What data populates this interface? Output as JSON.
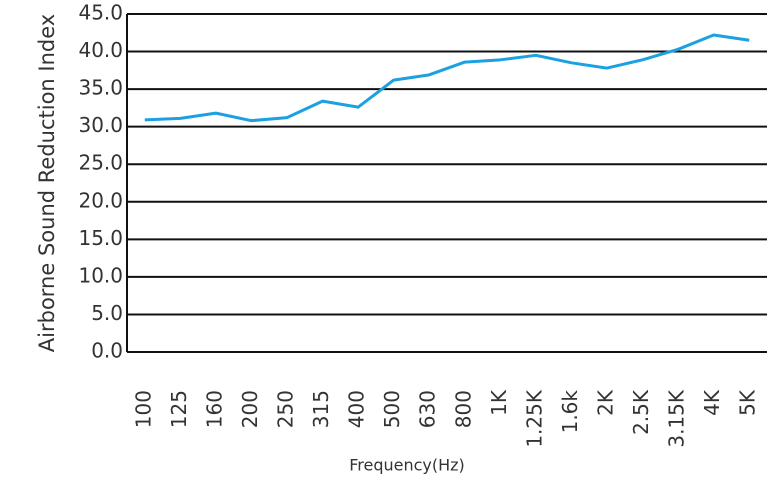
{
  "chart_data": {
    "type": "line",
    "y_label": "Airborne Sound Reduction Index",
    "x_label": "Frequency(Hz)",
    "categories": [
      "100",
      "125",
      "160",
      "200",
      "250",
      "315",
      "400",
      "500",
      "630",
      "800",
      "1K",
      "1.25K",
      "1.6k",
      "2K",
      "2.5K",
      "3.15K",
      "4K",
      "5K"
    ],
    "series": [
      {
        "color": "#1ba1e2",
        "values": [
          30.9,
          31.1,
          31.8,
          30.8,
          31.2,
          33.4,
          32.6,
          36.2,
          36.9,
          38.6,
          38.9,
          39.5,
          38.5,
          37.8,
          38.9,
          40.3,
          42.2,
          41.5
        ]
      }
    ],
    "ylim": [
      0,
      45
    ],
    "yticks": [
      {
        "value": 0,
        "label": "0.0"
      },
      {
        "value": 5,
        "label": "5.0"
      },
      {
        "value": 10,
        "label": "10.0"
      },
      {
        "value": 15,
        "label": "15.0"
      },
      {
        "value": 20,
        "label": "20.0"
      },
      {
        "value": 25,
        "label": "25.0"
      },
      {
        "value": 30,
        "label": "30.0"
      },
      {
        "value": 35,
        "label": "35.0"
      },
      {
        "value": 40,
        "label": "40.0"
      },
      {
        "value": 45,
        "label": "45.0"
      }
    ],
    "grid": true
  }
}
